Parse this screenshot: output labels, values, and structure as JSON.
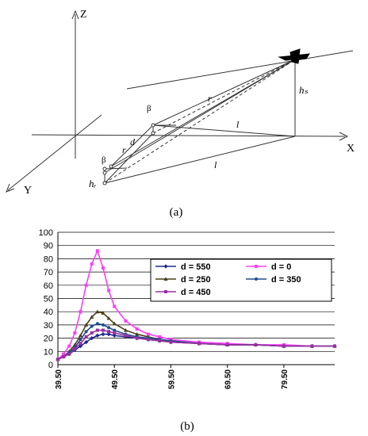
{
  "panel_a": {
    "caption": "(a)",
    "axis_labels": {
      "z": "Z",
      "x": "X",
      "y": "Y"
    },
    "symbols": {
      "hs": "hₛ",
      "hr": "hᵣ",
      "r_top": "r",
      "r_mid": "r",
      "l_top": "l",
      "l_bottom": "l",
      "d": "d",
      "beta_top": "β",
      "beta_bottom": "β"
    }
  },
  "panel_b": {
    "caption": "(b)"
  },
  "chart_data": {
    "type": "line",
    "title": "",
    "xlabel": "",
    "ylabel": "",
    "ylim": [
      0,
      100
    ],
    "yticks": [
      0,
      10,
      20,
      30,
      40,
      50,
      60,
      70,
      80,
      90,
      100
    ],
    "xticks": [
      "39.50",
      "49.50",
      "59.50",
      "69.50",
      "79.50"
    ],
    "xlim": [
      39.5,
      88.5
    ],
    "grid": "horizontal",
    "legend_position": "upper-right inside",
    "series": [
      {
        "name": "d = 550",
        "color": "#1f2a8c",
        "marker": "diamond",
        "x": [
          39.5,
          40.5,
          41.5,
          42.5,
          43.5,
          44.5,
          45.5,
          46.5,
          47.5,
          48.5,
          49.5,
          51.5,
          53.5,
          55.5,
          57.5,
          59.5,
          64.5,
          69.5,
          74.5,
          79.5,
          84.5,
          88.5
        ],
        "y": [
          4,
          6,
          8,
          11,
          14,
          17,
          20,
          22,
          23,
          23,
          22,
          21,
          20,
          19,
          18,
          17,
          16,
          15,
          15,
          14,
          14,
          14
        ]
      },
      {
        "name": "d = 0",
        "color": "#ff3cff",
        "marker": "square",
        "x": [
          39.5,
          40.5,
          41.5,
          42.5,
          43.5,
          44.5,
          45.5,
          46.5,
          47.5,
          48.5,
          49.5,
          51.5,
          53.5,
          55.5,
          57.5,
          59.5,
          64.5,
          69.5,
          74.5,
          79.5,
          84.5,
          88.5
        ],
        "y": [
          4,
          8,
          14,
          24,
          40,
          60,
          76,
          86,
          73,
          56,
          44,
          33,
          27,
          23,
          21,
          19,
          17,
          16,
          15,
          15,
          14,
          14
        ]
      },
      {
        "name": "d = 250",
        "color": "#4a3f1a",
        "marker": "triangle",
        "x": [
          39.5,
          40.5,
          41.5,
          42.5,
          43.5,
          44.5,
          45.5,
          46.5,
          47.5,
          48.5,
          49.5,
          51.5,
          53.5,
          55.5,
          57.5,
          59.5,
          64.5,
          69.5,
          74.5,
          79.5,
          84.5,
          88.5
        ],
        "y": [
          4,
          6,
          10,
          15,
          22,
          30,
          36,
          40,
          39,
          35,
          31,
          26,
          23,
          21,
          19,
          18,
          16,
          15,
          15,
          14,
          14,
          14
        ]
      },
      {
        "name": "d = 350",
        "color": "#1f4e8c",
        "marker": "circle",
        "x": [
          39.5,
          40.5,
          41.5,
          42.5,
          43.5,
          44.5,
          45.5,
          46.5,
          47.5,
          48.5,
          49.5,
          51.5,
          53.5,
          55.5,
          57.5,
          59.5,
          64.5,
          69.5,
          74.5,
          79.5,
          84.5,
          88.5
        ],
        "y": [
          4,
          6,
          9,
          13,
          19,
          25,
          29,
          31,
          30,
          28,
          26,
          23,
          21,
          20,
          19,
          18,
          16,
          15,
          15,
          14,
          14,
          14
        ]
      },
      {
        "name": "d = 450",
        "color": "#9a2fa0",
        "marker": "square",
        "x": [
          39.5,
          40.5,
          41.5,
          42.5,
          43.5,
          44.5,
          45.5,
          46.5,
          47.5,
          48.5,
          49.5,
          51.5,
          53.5,
          55.5,
          57.5,
          59.5,
          64.5,
          69.5,
          74.5,
          79.5,
          84.5,
          88.5
        ],
        "y": [
          4,
          6,
          8,
          12,
          16,
          21,
          24,
          26,
          26,
          25,
          24,
          22,
          20,
          19,
          18,
          17,
          16,
          15,
          15,
          14,
          14,
          14
        ]
      }
    ]
  }
}
